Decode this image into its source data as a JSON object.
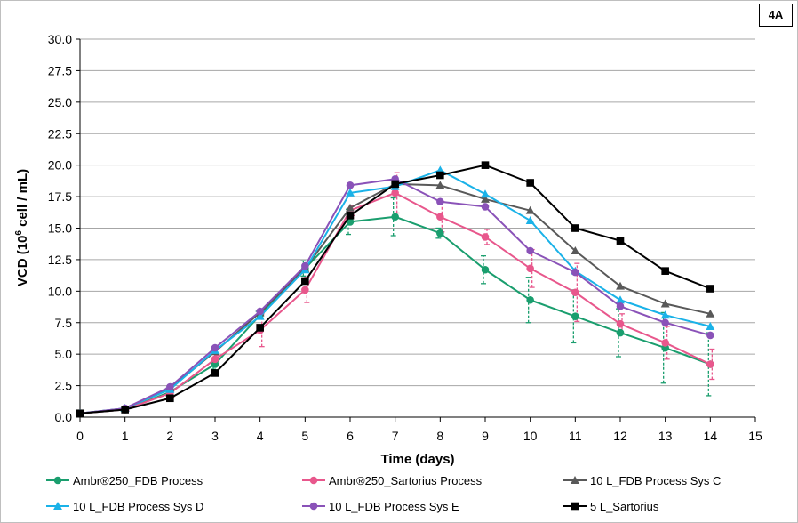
{
  "panel_label": "4A",
  "chart_data": {
    "type": "line",
    "title": "",
    "xlabel": "Time (days)",
    "ylabel_main": "VCD (10",
    "ylabel_sup": "6",
    "ylabel_tail": " cell / mL)",
    "xlim": [
      0,
      15
    ],
    "ylim": [
      0,
      30
    ],
    "x_ticks": [
      0,
      1,
      2,
      3,
      4,
      5,
      6,
      7,
      8,
      9,
      10,
      11,
      12,
      13,
      14,
      15
    ],
    "y_ticks": [
      "0.0",
      "2.5",
      "5.0",
      "7.5",
      "10.0",
      "12.5",
      "15.0",
      "17.5",
      "20.0",
      "22.5",
      "25.0",
      "27.5",
      "30.0"
    ],
    "grid": "horizontal",
    "legend_position": "bottom",
    "series": [
      {
        "name": "Ambr®250_FDB Process",
        "color": "#1a9e6e",
        "marker": "circle",
        "x": [
          0,
          1,
          2,
          3,
          4,
          5,
          6,
          7,
          8,
          9,
          10,
          11,
          12,
          13,
          14
        ],
        "y": [
          0.3,
          0.6,
          2.0,
          4.2,
          8.1,
          11.8,
          15.5,
          15.9,
          14.6,
          11.7,
          9.3,
          8.0,
          6.7,
          5.5,
          4.2
        ],
        "err": [
          0,
          0.1,
          0.3,
          0.4,
          0.3,
          0.6,
          1.0,
          1.5,
          0.4,
          1.1,
          1.8,
          2.1,
          1.9,
          2.8,
          2.5
        ]
      },
      {
        "name": "Ambr®250_Sartorius Process",
        "color": "#e8578c",
        "marker": "circle",
        "x": [
          0,
          1,
          2,
          3,
          4,
          5,
          6,
          7,
          8,
          9,
          10,
          11,
          12,
          13,
          14
        ],
        "y": [
          0.3,
          0.6,
          1.9,
          4.6,
          6.9,
          10.1,
          16.4,
          17.8,
          15.9,
          14.3,
          11.8,
          9.9,
          7.4,
          5.9,
          4.2
        ],
        "err": [
          0,
          0.1,
          0.3,
          0.3,
          1.3,
          1.0,
          0.4,
          1.6,
          1.2,
          0.6,
          1.5,
          2.3,
          0.8,
          1.3,
          1.2
        ]
      },
      {
        "name": "10 L_FDB Process Sys C",
        "color": "#595959",
        "marker": "triangle",
        "x": [
          0,
          1,
          2,
          3,
          4,
          5,
          6,
          7,
          8,
          9,
          10,
          11,
          12,
          13,
          14
        ],
        "y": [
          0.3,
          0.7,
          2.3,
          5.2,
          8.3,
          11.8,
          16.6,
          18.5,
          18.4,
          17.3,
          16.4,
          13.2,
          10.4,
          9.0,
          8.2
        ]
      },
      {
        "name": "10 L_FDB Process Sys D",
        "color": "#1ab2e8",
        "marker": "triangle",
        "x": [
          0,
          1,
          2,
          3,
          4,
          5,
          6,
          7,
          8,
          9,
          10,
          11,
          12,
          13,
          14
        ],
        "y": [
          0.3,
          0.7,
          2.2,
          5.3,
          8.0,
          11.7,
          17.8,
          18.3,
          19.6,
          17.7,
          15.6,
          11.6,
          9.3,
          8.1,
          7.2
        ]
      },
      {
        "name": "10 L_FDB Process Sys E",
        "color": "#8a52b8",
        "marker": "circle",
        "x": [
          0,
          1,
          2,
          3,
          4,
          5,
          6,
          7,
          8,
          9,
          10,
          11,
          12,
          13,
          14
        ],
        "y": [
          0.3,
          0.7,
          2.4,
          5.5,
          8.4,
          12.0,
          18.4,
          18.9,
          17.1,
          16.7,
          13.2,
          11.5,
          8.8,
          7.5,
          6.5
        ]
      },
      {
        "name": "5 L_Sartorius",
        "color": "#000000",
        "marker": "square",
        "x": [
          0,
          1,
          2,
          3,
          4,
          5,
          6,
          7,
          8,
          9,
          10,
          11,
          12,
          13,
          14
        ],
        "y": [
          0.3,
          0.6,
          1.5,
          3.5,
          7.1,
          10.8,
          16.0,
          18.5,
          19.2,
          20.0,
          18.6,
          15.0,
          14.0,
          11.6,
          10.2
        ]
      }
    ]
  }
}
